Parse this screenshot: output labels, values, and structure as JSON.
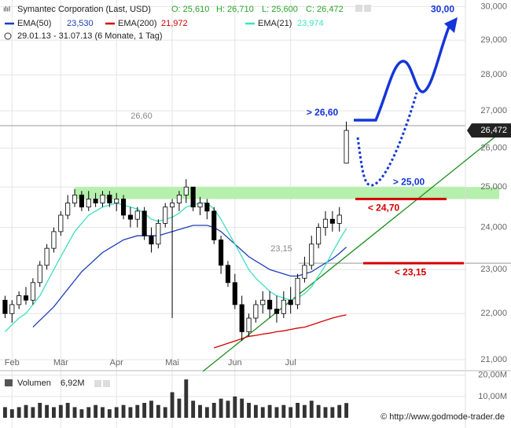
{
  "chart_data": [
    {
      "type": "candlestick",
      "title": "Symantec Corporation (Last, USD)",
      "ohlc_labels": [
        "O: 25,610",
        "H: 26,710",
        "L: 25,600",
        "C: 26,472"
      ],
      "subtitle": "29.01.13 - 31.07.13 (6 Monate, 1 Tag)",
      "categories": [
        null,
        "Feb",
        null,
        null,
        null,
        null,
        null,
        null,
        "Mär",
        null,
        null,
        null,
        null,
        null,
        null,
        null,
        "Apr",
        null,
        null,
        null,
        null,
        null,
        null,
        null,
        "Mai",
        null,
        null,
        null,
        null,
        null,
        null,
        null,
        null,
        "Jun",
        null,
        null,
        null,
        null,
        null,
        null,
        null,
        "Jul",
        null,
        null,
        null,
        null,
        null,
        null,
        null,
        null
      ],
      "open": [
        22.3,
        22.0,
        22.2,
        22.4,
        22.3,
        22.7,
        23.1,
        23.5,
        23.9,
        24.3,
        24.6,
        24.8,
        24.5,
        24.7,
        24.6,
        24.8,
        24.6,
        24.7,
        24.3,
        24.2,
        24.4,
        23.8,
        23.6,
        24.1,
        24.5,
        24.6,
        24.8,
        25.0,
        24.5,
        24.6,
        24.4,
        23.7,
        23.1,
        22.7,
        22.2,
        21.6,
        21.9,
        22.2,
        22.3,
        22.1,
        22.0,
        22.3,
        22.2,
        22.8,
        23.1,
        23.6,
        24.0,
        24.2,
        24.1,
        25.61
      ],
      "high": [
        22.4,
        22.3,
        22.5,
        22.6,
        22.8,
        23.2,
        23.6,
        24.0,
        24.4,
        24.8,
        24.95,
        24.9,
        24.9,
        24.85,
        24.9,
        24.9,
        24.85,
        24.8,
        24.5,
        24.5,
        24.5,
        24.0,
        24.2,
        24.6,
        24.7,
        24.9,
        25.2,
        25.0,
        24.75,
        24.7,
        24.5,
        23.8,
        23.2,
        22.9,
        22.4,
        22.0,
        22.3,
        22.5,
        22.5,
        22.4,
        22.5,
        22.6,
        22.9,
        23.3,
        23.8,
        24.1,
        24.4,
        24.4,
        24.5,
        26.71
      ],
      "low": [
        21.9,
        21.8,
        22.1,
        22.2,
        22.2,
        22.6,
        23.0,
        23.4,
        23.8,
        24.2,
        24.5,
        24.4,
        24.4,
        24.5,
        24.5,
        24.5,
        24.4,
        24.2,
        24.0,
        24.0,
        23.7,
        23.4,
        23.5,
        24.0,
        21.9,
        24.4,
        24.6,
        24.4,
        24.3,
        24.2,
        23.6,
        22.9,
        22.6,
        22.1,
        21.4,
        21.5,
        21.8,
        22.0,
        21.9,
        21.8,
        21.9,
        22.0,
        22.1,
        22.7,
        23.0,
        23.5,
        23.8,
        23.9,
        23.9,
        25.6
      ],
      "close": [
        22.0,
        22.2,
        22.4,
        22.3,
        22.7,
        23.1,
        23.5,
        23.9,
        24.3,
        24.6,
        24.8,
        24.5,
        24.7,
        24.6,
        24.8,
        24.6,
        24.7,
        24.3,
        24.2,
        24.4,
        23.8,
        23.6,
        24.1,
        24.5,
        24.6,
        24.8,
        25.0,
        24.5,
        24.6,
        24.4,
        23.7,
        23.1,
        22.7,
        22.2,
        21.6,
        21.9,
        22.2,
        22.3,
        22.1,
        22.0,
        22.3,
        22.2,
        22.8,
        23.1,
        23.6,
        24.0,
        24.2,
        24.1,
        24.3,
        26.472
      ],
      "up_color": "#ffffff",
      "down_color": "#000000",
      "series": [
        {
          "name": "EMA(50)",
          "color": "#1c3fb8",
          "values": [
            null,
            null,
            null,
            null,
            21.7,
            21.85,
            22.0,
            22.15,
            22.35,
            22.55,
            22.75,
            22.95,
            23.1,
            23.25,
            23.4,
            23.5,
            23.6,
            23.7,
            23.75,
            23.8,
            23.8,
            23.8,
            23.8,
            23.85,
            23.9,
            23.95,
            24.0,
            24.05,
            24.05,
            24.05,
            24.0,
            23.9,
            23.75,
            23.6,
            23.45,
            23.3,
            23.2,
            23.1,
            23.0,
            22.95,
            22.9,
            22.85,
            22.85,
            22.9,
            22.95,
            23.05,
            23.15,
            23.25,
            23.38,
            23.53
          ],
          "value_labels": [
            null,
            null,
            null,
            null,
            null,
            null,
            null,
            null,
            null,
            null,
            null,
            null,
            null,
            null,
            null,
            null,
            null,
            null,
            null,
            null,
            null,
            null,
            null,
            null,
            null,
            null,
            null,
            null,
            null,
            null,
            null,
            null,
            null,
            null,
            null,
            null,
            null,
            null,
            null,
            null,
            null,
            null,
            null,
            null,
            null,
            null,
            null,
            null,
            null,
            "23,530"
          ]
        },
        {
          "name": "EMA(200)",
          "color": "#d40000",
          "values": [
            null,
            null,
            null,
            null,
            null,
            null,
            null,
            null,
            null,
            null,
            null,
            null,
            null,
            null,
            null,
            null,
            null,
            null,
            null,
            null,
            null,
            null,
            null,
            null,
            null,
            null,
            null,
            null,
            null,
            null,
            21.25,
            21.3,
            21.35,
            21.4,
            21.45,
            21.5,
            21.52,
            21.55,
            21.57,
            21.6,
            21.62,
            21.65,
            21.68,
            21.7,
            21.75,
            21.8,
            21.85,
            21.9,
            21.94,
            21.972
          ],
          "value_labels": [
            null,
            null,
            null,
            null,
            null,
            null,
            null,
            null,
            null,
            null,
            null,
            null,
            null,
            null,
            null,
            null,
            null,
            null,
            null,
            null,
            null,
            null,
            null,
            null,
            null,
            null,
            null,
            null,
            null,
            null,
            null,
            null,
            null,
            null,
            null,
            null,
            null,
            null,
            null,
            null,
            null,
            null,
            null,
            null,
            null,
            null,
            null,
            null,
            null,
            "21,972"
          ]
        },
        {
          "name": "EMA(21)",
          "color": "#3fe0c0",
          "values": [
            21.6,
            21.75,
            21.9,
            22.0,
            22.2,
            22.4,
            22.7,
            23.0,
            23.3,
            23.6,
            23.9,
            24.1,
            24.3,
            24.4,
            24.5,
            24.55,
            24.6,
            24.55,
            24.5,
            24.45,
            24.35,
            24.2,
            24.15,
            24.2,
            24.25,
            24.35,
            24.5,
            24.55,
            24.6,
            24.6,
            24.45,
            24.2,
            23.9,
            23.6,
            23.3,
            23.0,
            22.8,
            22.65,
            22.5,
            22.4,
            22.35,
            22.3,
            22.35,
            22.45,
            22.6,
            22.85,
            23.1,
            23.4,
            23.7,
            23.974
          ],
          "value_labels": [
            null,
            null,
            null,
            null,
            null,
            null,
            null,
            null,
            null,
            null,
            null,
            null,
            null,
            null,
            null,
            null,
            null,
            null,
            null,
            null,
            null,
            null,
            null,
            null,
            null,
            null,
            null,
            null,
            null,
            null,
            null,
            null,
            null,
            null,
            null,
            null,
            null,
            null,
            null,
            null,
            null,
            null,
            null,
            null,
            null,
            null,
            null,
            null,
            null,
            "23,974"
          ]
        }
      ],
      "log_scale": true,
      "ylim": [
        20.8,
        30.2
      ],
      "yticks": [
        {
          "value": 21,
          "label": "21,000"
        },
        {
          "value": 22,
          "label": "22,000"
        },
        {
          "value": 23,
          "label": "23,000"
        },
        {
          "value": 24,
          "label": "24,000"
        },
        {
          "value": 25,
          "label": "25,000"
        },
        {
          "value": 26,
          "label": "26,000"
        },
        {
          "value": 27,
          "label": "27,000"
        },
        {
          "value": 28,
          "label": "28,000"
        },
        {
          "value": 29,
          "label": "29,000"
        },
        {
          "value": 30,
          "label": "30,000"
        }
      ],
      "grid": true,
      "last_price": {
        "value": 26.472,
        "label": "26,472"
      },
      "levels": [
        {
          "value": 26.6,
          "label": "26,60"
        },
        {
          "value": 23.15,
          "label": "23,15"
        }
      ],
      "zone": [
        24.7,
        25.0
      ],
      "targets": [
        {
          "value": 26.6,
          "label": "> 26,60"
        },
        {
          "value": 25.0,
          "label": "> 25,00"
        },
        {
          "value": 30.0,
          "label": "30,00"
        }
      ],
      "stops": [
        {
          "value": 24.7,
          "label": "< 24,70"
        },
        {
          "value": 23.15,
          "label": "< 23,15"
        }
      ]
    },
    {
      "type": "bar",
      "title": "Volumen",
      "color": "#333333",
      "values": [
        5,
        4,
        5,
        6,
        5,
        7,
        6,
        5,
        6,
        7,
        5,
        4,
        5,
        6,
        5,
        4,
        5,
        6,
        5,
        6,
        7,
        8,
        6,
        5,
        12,
        9,
        18,
        8,
        6,
        5,
        7,
        9,
        8,
        10,
        9,
        7,
        6,
        5,
        6,
        5,
        6,
        5,
        7,
        6,
        8,
        6,
        5,
        5,
        6,
        6.92
      ],
      "value_labels": [
        null,
        null,
        null,
        null,
        null,
        null,
        null,
        null,
        null,
        null,
        null,
        null,
        null,
        null,
        null,
        null,
        null,
        null,
        null,
        null,
        null,
        null,
        null,
        null,
        null,
        null,
        null,
        null,
        null,
        null,
        null,
        null,
        null,
        null,
        null,
        null,
        null,
        null,
        null,
        null,
        null,
        null,
        null,
        null,
        null,
        null,
        null,
        null,
        null,
        "6,92M"
      ],
      "ylim": [
        0,
        21
      ],
      "yticks": [
        {
          "value": 10,
          "label": "10,00M"
        },
        {
          "value": 20,
          "label": "20,00M"
        }
      ]
    }
  ],
  "footer": "© http://www.godmode-trader.de"
}
